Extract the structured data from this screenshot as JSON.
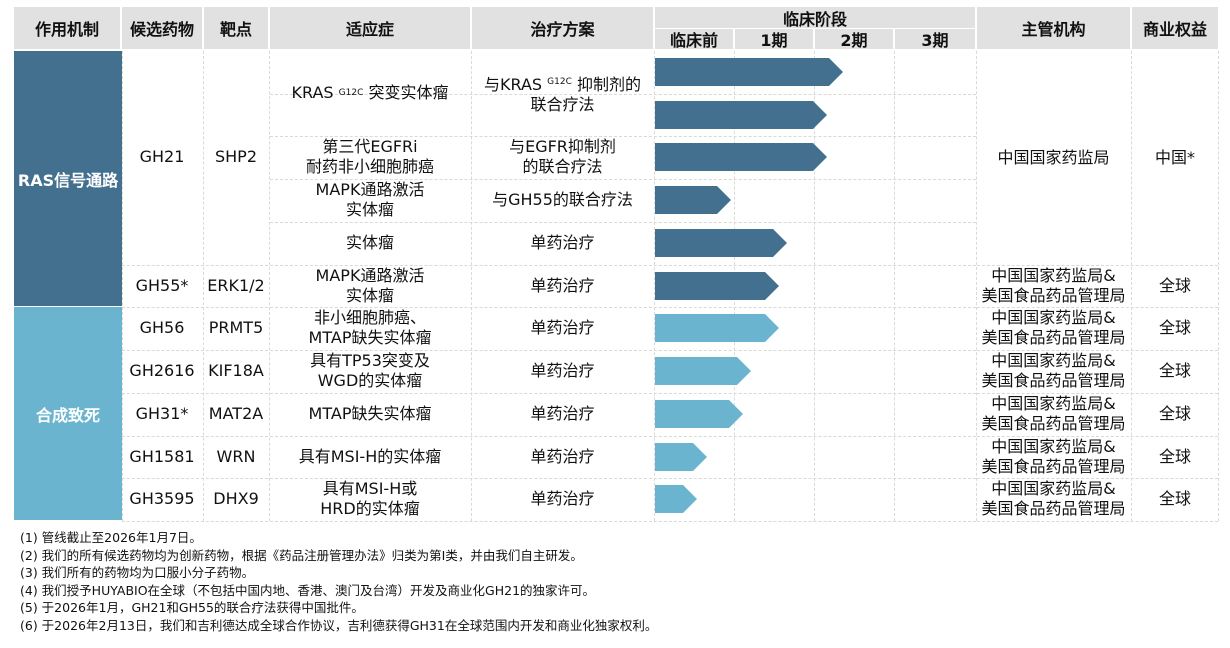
{
  "headers": {
    "mechanism": "作用机制",
    "candidate": "候选药物",
    "target": "靶点",
    "indication": "适应症",
    "regimen": "治疗方案",
    "phase_group": "临床阶段",
    "phases": [
      "临床前",
      "1期",
      "2期",
      "3期"
    ],
    "authority": "主管机构",
    "rights": "商业权益"
  },
  "mechanisms": [
    {
      "name": "RAS信号通路",
      "color": "#44708f"
    },
    {
      "name": "合成致死",
      "color": "#6ab4cf"
    }
  ],
  "candidates": [
    {
      "name": "GH21",
      "target": "SHP2",
      "authority": "中国国家药监局",
      "rights": "中国*"
    },
    {
      "name": "GH55*",
      "target": "ERK1/2",
      "authority": "中国国家药监局&\n美国食品药品管理局",
      "rights": "全球"
    },
    {
      "name": "GH56",
      "target": "PRMT5",
      "authority": "中国国家药监局&\n美国食品药品管理局",
      "rights": "全球"
    },
    {
      "name": "GH2616",
      "target": "KIF18A",
      "authority": "中国国家药监局&\n美国食品药品管理局",
      "rights": "全球"
    },
    {
      "name": "GH31*",
      "target": "MAT2A",
      "authority": "中国国家药监局&\n美国食品药品管理局",
      "rights": "全球"
    },
    {
      "name": "GH1581",
      "target": "WRN",
      "authority": "中国国家药监局&\n美国食品药品管理局",
      "rights": "全球"
    },
    {
      "name": "GH3595",
      "target": "DHX9",
      "authority": "中国国家药监局&\n美国食品药品管理局",
      "rights": "全球"
    }
  ],
  "indications": {
    "kras_prefix": "KRAS ",
    "kras_sup": "G12C",
    "kras_suffix": " 突变实体瘤",
    "egfr": "第三代EGFRi\n耐药非小细胞肺癌",
    "mapk1": "MAPK通路激活\n实体瘤",
    "solid": "实体瘤",
    "mapk2": "MAPK通路激活\n实体瘤",
    "nsclc": "非小细胞肺癌、\nMTAP缺失实体瘤",
    "tp53": "具有TP53突变及\nWGD的实体瘤",
    "mtap": "MTAP缺失实体瘤",
    "msi1": "具有MSI-H的实体瘤",
    "msi2": "具有MSI-H或\nHRD的实体瘤"
  },
  "regimens": {
    "kras_line1_prefix": "与KRAS ",
    "kras_line1_sup": "G12C",
    "kras_line1_suffix": " 抑制剂的",
    "kras_line2": "联合疗法",
    "egfr": "与EGFR抑制剂\n的联合疗法",
    "gh55": "与GH55的联合疗法",
    "mono": "单药治疗"
  },
  "progress_rows": [
    {
      "row": 1,
      "mechanism": "RAS信号通路",
      "progress_phase": 2.35
    },
    {
      "row": 2,
      "mechanism": "RAS信号通路",
      "progress_phase": 2.15
    },
    {
      "row": 3,
      "mechanism": "RAS信号通路",
      "progress_phase": 2.15
    },
    {
      "row": 4,
      "mechanism": "RAS信号通路",
      "progress_phase": 0.95
    },
    {
      "row": 5,
      "mechanism": "RAS信号通路",
      "progress_phase": 1.65
    },
    {
      "row": 6,
      "mechanism": "RAS信号通路",
      "progress_phase": 1.55
    },
    {
      "row": 7,
      "mechanism": "合成致死",
      "progress_phase": 1.55
    },
    {
      "row": 8,
      "mechanism": "合成致死",
      "progress_phase": 1.2
    },
    {
      "row": 9,
      "mechanism": "合成致死",
      "progress_phase": 1.1
    },
    {
      "row": 10,
      "mechanism": "合成致死",
      "progress_phase": 0.65
    },
    {
      "row": 11,
      "mechanism": "合成致死",
      "progress_phase": 0.52
    }
  ],
  "footnotes": [
    "(1) 管线截止至2026年1月7日。",
    "(2) 我们的所有候选药物均为创新药物，根据《药品注册管理办法》归类为第Ⅰ类，并由我们自主研发。",
    "(3) 我们所有的药物均为口服小分子药物。",
    "(4) 我们授予HUYABIO在全球（不包括中国内地、香港、澳门及台湾）开发及商业化GH21的独家许可。",
    "(5) 于2026年1月，GH21和GH55的联合疗法获得中国批件。",
    "(6) 于2026年2月13日，我们和吉利德达成全球合作协议，吉利德获得GH31在全球范围内开发和商业化独家权利。"
  ]
}
